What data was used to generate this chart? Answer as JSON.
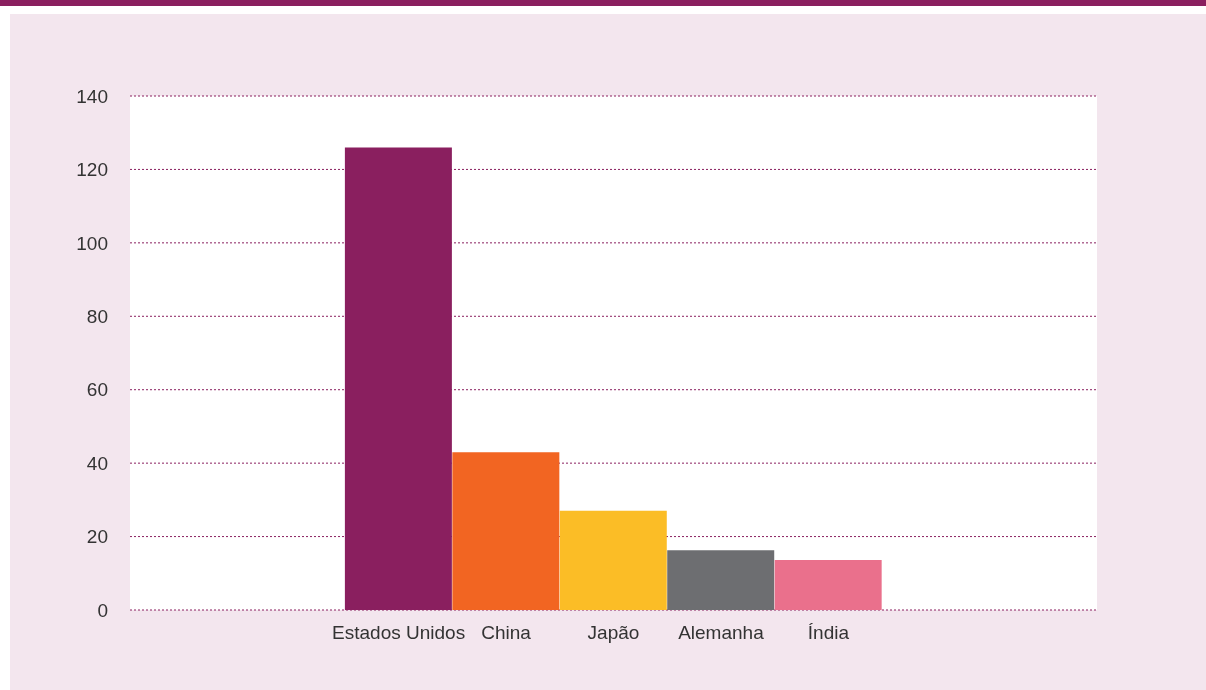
{
  "chart_data": {
    "type": "bar",
    "categories": [
      null,
      null,
      "Estados Unidos",
      "China",
      "Japão",
      "Alemanha",
      "Índia",
      null,
      null
    ],
    "values": [
      null,
      null,
      126,
      43,
      27,
      16.3,
      13.6,
      null,
      null
    ],
    "colors": [
      "#8a1f5f",
      "#8a1f5f",
      "#8a1f5f",
      "#f26522",
      "#fbbd26",
      "#6d6e71",
      "#ea708c",
      "#8a1f5f",
      "#8a1f5f"
    ],
    "ylim": [
      0,
      140
    ],
    "yticks": [
      0,
      20,
      40,
      60,
      80,
      100,
      120,
      140
    ],
    "grid": "y"
  }
}
